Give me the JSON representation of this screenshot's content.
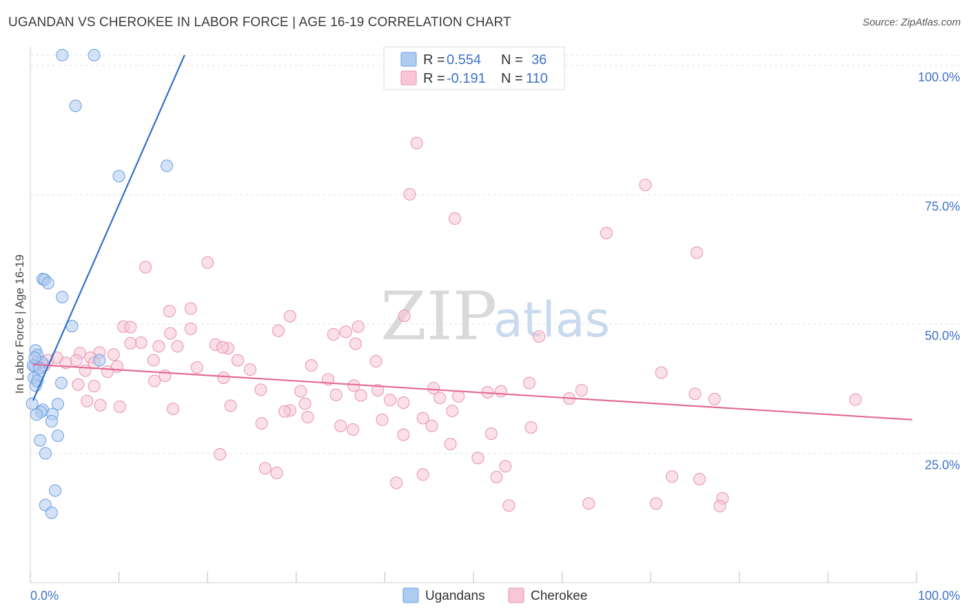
{
  "title": "UGANDAN VS CHEROKEE IN LABOR FORCE | AGE 16-19 CORRELATION CHART",
  "source": "Source: ZipAtlas.com",
  "watermark": {
    "zip": "ZIP",
    "atlas": "atlas"
  },
  "legend": {
    "rows": [
      {
        "r_label": "R =",
        "r_value": "0.554",
        "n_label": "N =",
        "n_value": "36",
        "color": "#aecbf0",
        "stroke": "#6a9ee0"
      },
      {
        "r_label": "R =",
        "r_value": "-0.191",
        "n_label": "N =",
        "n_value": "110",
        "color": "#f8c6d6",
        "stroke": "#e890ae"
      }
    ]
  },
  "chart_data": {
    "type": "scatter",
    "title": "UGANDAN VS CHEROKEE IN LABOR FORCE | AGE 16-19 CORRELATION CHART",
    "xlabel": "",
    "ylabel": "In Labor Force | Age 16-19",
    "xlim": [
      0,
      100
    ],
    "ylim": [
      0,
      102
    ],
    "x_tick_labels": [
      "0.0%",
      "100.0%"
    ],
    "y_ticks": [
      25,
      50,
      75,
      100
    ],
    "y_tick_labels": [
      "25.0%",
      "50.0%",
      "75.0%",
      "100.0%"
    ],
    "grid": true,
    "legend_position": "top-center",
    "series": [
      {
        "name": "Ugandans",
        "color": "#aecbf0",
        "stroke": "#6a9ee0",
        "line_color": "#2f6fce",
        "trend": {
          "x0": 0.3,
          "y0": 35.2,
          "x1": 17.4,
          "y1": 102
        },
        "points": [
          [
            3.6,
            102
          ],
          [
            7.2,
            102
          ],
          [
            5.1,
            92.2
          ],
          [
            10.0,
            78.6
          ],
          [
            15.4,
            80.6
          ],
          [
            1.4,
            58.7
          ],
          [
            1.6,
            58.6
          ],
          [
            2.0,
            57.9
          ],
          [
            3.6,
            55.2
          ],
          [
            4.7,
            49.6
          ],
          [
            0.6,
            44.9
          ],
          [
            0.8,
            44.0
          ],
          [
            1.3,
            42.6
          ],
          [
            7.8,
            43.0
          ],
          [
            0.5,
            41.9
          ],
          [
            0.9,
            40.1
          ],
          [
            0.4,
            39.6
          ],
          [
            0.6,
            38.1
          ],
          [
            3.5,
            38.6
          ],
          [
            0.2,
            34.6
          ],
          [
            3.1,
            34.5
          ],
          [
            1.4,
            33.4
          ],
          [
            1.2,
            33.0
          ],
          [
            0.7,
            32.5
          ],
          [
            2.5,
            32.6
          ],
          [
            2.4,
            31.2
          ],
          [
            3.1,
            28.4
          ],
          [
            1.1,
            27.5
          ],
          [
            1.7,
            25.0
          ],
          [
            2.8,
            17.8
          ],
          [
            1.7,
            15.0
          ],
          [
            2.4,
            13.5
          ],
          [
            0.3,
            42.0
          ],
          [
            0.8,
            39.0
          ],
          [
            1.0,
            41.5
          ],
          [
            0.5,
            43.5
          ]
        ]
      },
      {
        "name": "Cherokee",
        "color": "#f8c6d6",
        "stroke": "#e890ae",
        "line_color": "#e56a96",
        "trend": {
          "x0": 0.3,
          "y0": 42.2,
          "x1": 99.5,
          "y1": 31.5
        },
        "points": [
          [
            43.6,
            85.0
          ],
          [
            42.8,
            75.1
          ],
          [
            69.4,
            76.9
          ],
          [
            47.9,
            70.4
          ],
          [
            65.0,
            67.6
          ],
          [
            75.2,
            63.8
          ],
          [
            20.0,
            61.9
          ],
          [
            13.0,
            61.0
          ],
          [
            15.7,
            52.5
          ],
          [
            18.1,
            53.0
          ],
          [
            29.3,
            51.5
          ],
          [
            42.2,
            51.6
          ],
          [
            37.0,
            49.5
          ],
          [
            34.2,
            48.0
          ],
          [
            10.5,
            49.5
          ],
          [
            11.3,
            49.4
          ],
          [
            35.6,
            48.5
          ],
          [
            28.0,
            48.7
          ],
          [
            15.8,
            48.2
          ],
          [
            18.1,
            49.1
          ],
          [
            12.5,
            46.4
          ],
          [
            11.3,
            46.3
          ],
          [
            20.9,
            46.0
          ],
          [
            22.3,
            45.3
          ],
          [
            16.6,
            45.7
          ],
          [
            36.7,
            46.2
          ],
          [
            57.4,
            47.6
          ],
          [
            21.7,
            45.5
          ],
          [
            14.5,
            45.7
          ],
          [
            7.8,
            44.5
          ],
          [
            5.6,
            44.4
          ],
          [
            9.4,
            44.1
          ],
          [
            0.8,
            42.5
          ],
          [
            2.0,
            43.0
          ],
          [
            3.0,
            43.5
          ],
          [
            4.0,
            42.5
          ],
          [
            5.2,
            43.0
          ],
          [
            1.6,
            42.0
          ],
          [
            6.8,
            43.5
          ],
          [
            7.2,
            42.5
          ],
          [
            9.8,
            41.8
          ],
          [
            18.8,
            41.6
          ],
          [
            24.8,
            41.2
          ],
          [
            31.7,
            42.0
          ],
          [
            39.0,
            42.8
          ],
          [
            13.9,
            43.0
          ],
          [
            23.4,
            43.0
          ],
          [
            6.2,
            41.0
          ],
          [
            8.7,
            40.8
          ],
          [
            21.8,
            39.6
          ],
          [
            15.2,
            40.0
          ],
          [
            14.0,
            39.0
          ],
          [
            5.4,
            38.3
          ],
          [
            7.2,
            38.0
          ],
          [
            33.6,
            39.3
          ],
          [
            36.5,
            38.1
          ],
          [
            30.5,
            37.0
          ],
          [
            26.0,
            37.3
          ],
          [
            39.2,
            37.2
          ],
          [
            45.5,
            37.6
          ],
          [
            34.5,
            36.3
          ],
          [
            37.3,
            36.2
          ],
          [
            48.3,
            36.0
          ],
          [
            62.2,
            37.2
          ],
          [
            71.2,
            40.6
          ],
          [
            75.0,
            36.5
          ],
          [
            53.1,
            37.0
          ],
          [
            51.6,
            36.8
          ],
          [
            56.3,
            38.6
          ],
          [
            46.2,
            35.7
          ],
          [
            40.6,
            35.3
          ],
          [
            60.8,
            35.6
          ],
          [
            77.2,
            35.5
          ],
          [
            31.0,
            34.6
          ],
          [
            93.1,
            35.4
          ],
          [
            42.1,
            34.8
          ],
          [
            6.4,
            35.1
          ],
          [
            7.9,
            34.3
          ],
          [
            16.1,
            33.6
          ],
          [
            10.1,
            34.0
          ],
          [
            22.6,
            34.2
          ],
          [
            29.3,
            33.3
          ],
          [
            47.6,
            33.2
          ],
          [
            28.7,
            33.1
          ],
          [
            31.3,
            32.0
          ],
          [
            39.7,
            31.5
          ],
          [
            44.3,
            31.8
          ],
          [
            26.1,
            30.8
          ],
          [
            35.0,
            30.3
          ],
          [
            45.3,
            30.3
          ],
          [
            42.1,
            28.6
          ],
          [
            36.4,
            29.6
          ],
          [
            56.5,
            30.0
          ],
          [
            52.0,
            28.8
          ],
          [
            47.4,
            26.8
          ],
          [
            50.5,
            24.1
          ],
          [
            53.6,
            22.5
          ],
          [
            41.3,
            19.3
          ],
          [
            52.6,
            20.4
          ],
          [
            72.4,
            20.5
          ],
          [
            78.1,
            16.3
          ],
          [
            63.0,
            15.3
          ],
          [
            54.0,
            14.9
          ],
          [
            70.6,
            15.3
          ],
          [
            77.8,
            14.8
          ],
          [
            44.3,
            20.9
          ],
          [
            21.4,
            24.8
          ],
          [
            27.8,
            21.2
          ],
          [
            26.5,
            22.1
          ],
          [
            75.5,
            20.0
          ]
        ]
      }
    ]
  },
  "bottom_legend": [
    {
      "label": "Ugandans",
      "color": "#aecbf0",
      "stroke": "#6a9ee0"
    },
    {
      "label": "Cherokee",
      "color": "#f8c6d6",
      "stroke": "#e890ae"
    }
  ]
}
